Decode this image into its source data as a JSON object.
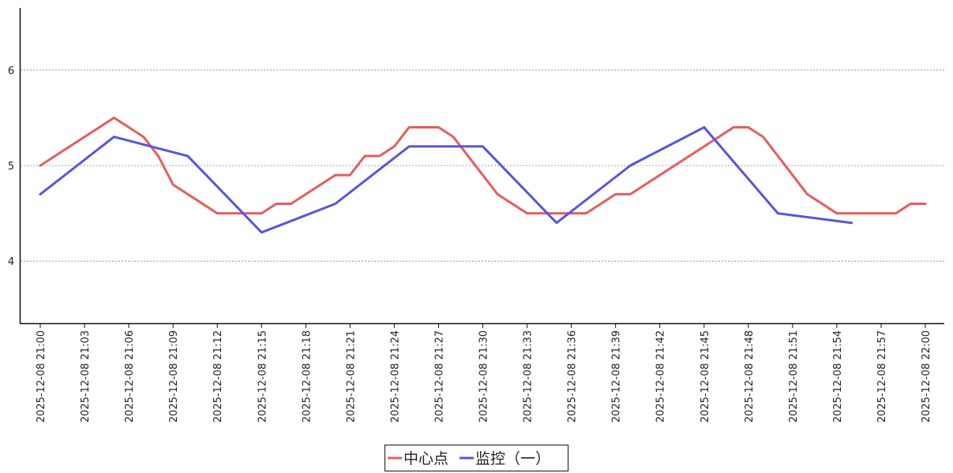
{
  "colors": {
    "background": "#ffffff",
    "axis": "#111111",
    "grid": "#888888",
    "series_1": "#e85c5c",
    "series_2": "#5555e0"
  },
  "legend": {
    "placement": "bottom-center",
    "items": [
      "中心点",
      "监控（一）"
    ]
  },
  "chart_data": {
    "type": "line",
    "title": "",
    "xlabel": "",
    "ylabel": "",
    "xlim": [
      "2025-12-08 21:00",
      "2025-12-08 22:00"
    ],
    "ylim": [
      3.35,
      6.65
    ],
    "grid": "horizontal dashed",
    "x_ticks": [
      "2025-12-08 21:00",
      "2025-12-08 21:03",
      "2025-12-08 21:06",
      "2025-12-08 21:09",
      "2025-12-08 21:12",
      "2025-12-08 21:15",
      "2025-12-08 21:18",
      "2025-12-08 21:21",
      "2025-12-08 21:24",
      "2025-12-08 21:27",
      "2025-12-08 21:30",
      "2025-12-08 21:33",
      "2025-12-08 21:36",
      "2025-12-08 21:39",
      "2025-12-08 21:42",
      "2025-12-08 21:45",
      "2025-12-08 21:48",
      "2025-12-08 21:51",
      "2025-12-08 21:54",
      "2025-12-08 21:57",
      "2025-12-08 22:00"
    ],
    "y_ticks": [
      "4",
      "5",
      "6"
    ],
    "series": [
      {
        "name": "中心点",
        "color": "#e85c5c",
        "points": [
          [
            "2025-12-08 21:00",
            5.0
          ],
          [
            "2025-12-08 21:03",
            5.3
          ],
          [
            "2025-12-08 21:05",
            5.5
          ],
          [
            "2025-12-08 21:07",
            5.3
          ],
          [
            "2025-12-08 21:08",
            5.1
          ],
          [
            "2025-12-08 21:09",
            4.8
          ],
          [
            "2025-12-08 21:12",
            4.5
          ],
          [
            "2025-12-08 21:15",
            4.5
          ],
          [
            "2025-12-08 21:16",
            4.6
          ],
          [
            "2025-12-08 21:17",
            4.6
          ],
          [
            "2025-12-08 21:20",
            4.9
          ],
          [
            "2025-12-08 21:21",
            4.9
          ],
          [
            "2025-12-08 21:22",
            5.1
          ],
          [
            "2025-12-08 21:23",
            5.1
          ],
          [
            "2025-12-08 21:24",
            5.2
          ],
          [
            "2025-12-08 21:25",
            5.4
          ],
          [
            "2025-12-08 21:27",
            5.4
          ],
          [
            "2025-12-08 21:28",
            5.3
          ],
          [
            "2025-12-08 21:31",
            4.7
          ],
          [
            "2025-12-08 21:33",
            4.5
          ],
          [
            "2025-12-08 21:37",
            4.5
          ],
          [
            "2025-12-08 21:39",
            4.7
          ],
          [
            "2025-12-08 21:40",
            4.7
          ],
          [
            "2025-12-08 21:45",
            5.2
          ],
          [
            "2025-12-08 21:47",
            5.4
          ],
          [
            "2025-12-08 21:48",
            5.4
          ],
          [
            "2025-12-08 21:49",
            5.3
          ],
          [
            "2025-12-08 21:52",
            4.7
          ],
          [
            "2025-12-08 21:54",
            4.5
          ],
          [
            "2025-12-08 21:58",
            4.5
          ],
          [
            "2025-12-08 21:59",
            4.6
          ],
          [
            "2025-12-08 22:00",
            4.6
          ]
        ]
      },
      {
        "name": "监控（一）",
        "color": "#5555e0",
        "points": [
          [
            "2025-12-08 21:00",
            4.7
          ],
          [
            "2025-12-08 21:05",
            5.3
          ],
          [
            "2025-12-08 21:10",
            5.1
          ],
          [
            "2025-12-08 21:15",
            4.3
          ],
          [
            "2025-12-08 21:20",
            4.6
          ],
          [
            "2025-12-08 21:25",
            5.2
          ],
          [
            "2025-12-08 21:30",
            5.2
          ],
          [
            "2025-12-08 21:35",
            4.4
          ],
          [
            "2025-12-08 21:40",
            5.0
          ],
          [
            "2025-12-08 21:45",
            5.4
          ],
          [
            "2025-12-08 21:50",
            4.5
          ],
          [
            "2025-12-08 21:55",
            4.4
          ]
        ]
      }
    ]
  }
}
